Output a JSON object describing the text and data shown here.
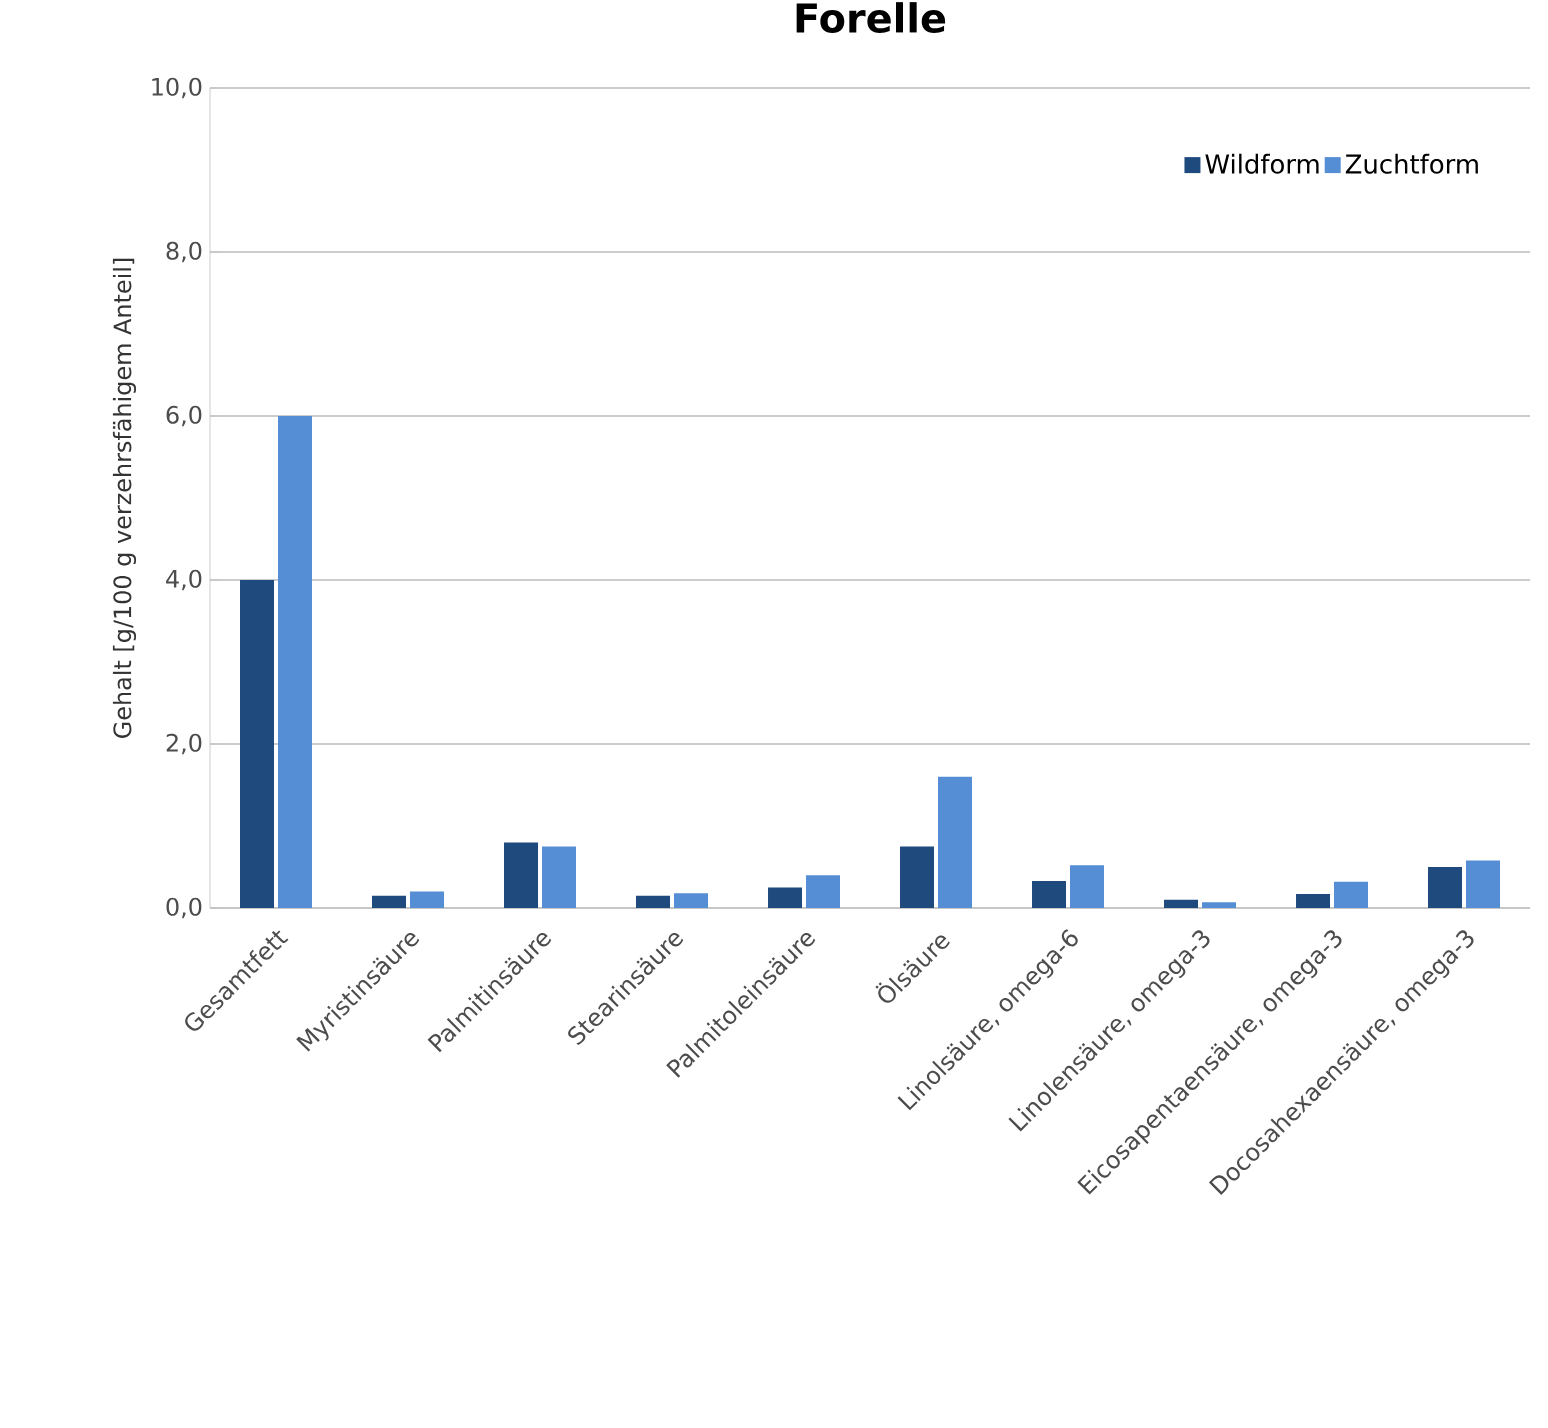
{
  "chart_data": {
    "type": "bar",
    "title": "Forelle",
    "ylabel": "Gehalt [g/100 g verzehrsfähigem Anteil]",
    "categories": [
      "Gesamtfett",
      "Myristinsäure",
      "Palmitinsäure",
      "Stearinsäure",
      "Palmitoleinsäure",
      "Ölsäure",
      "Linolsäure, omega-6",
      "Linolensäure, omega-3",
      "Eicosapentaensäure, omega-3",
      "Docosahexaensäure, omega-3"
    ],
    "series": [
      {
        "name": "Wildform",
        "color": "#1f4a7e",
        "values": [
          4.0,
          0.15,
          0.8,
          0.15,
          0.25,
          0.75,
          0.33,
          0.1,
          0.17,
          0.5
        ]
      },
      {
        "name": "Zuchtform",
        "color": "#558ed5",
        "values": [
          6.0,
          0.2,
          0.75,
          0.18,
          0.4,
          1.6,
          0.52,
          0.07,
          0.32,
          0.58
        ]
      }
    ],
    "ylim": [
      0,
      10
    ],
    "yticks": [
      {
        "value": 0,
        "label": "0,0"
      },
      {
        "value": 2,
        "label": "2,0"
      },
      {
        "value": 4,
        "label": "4,0"
      },
      {
        "value": 6,
        "label": "6,0"
      },
      {
        "value": 8,
        "label": "8,0"
      },
      {
        "value": 10,
        "label": "10,0"
      }
    ],
    "grid": "y",
    "legend": "top right"
  }
}
